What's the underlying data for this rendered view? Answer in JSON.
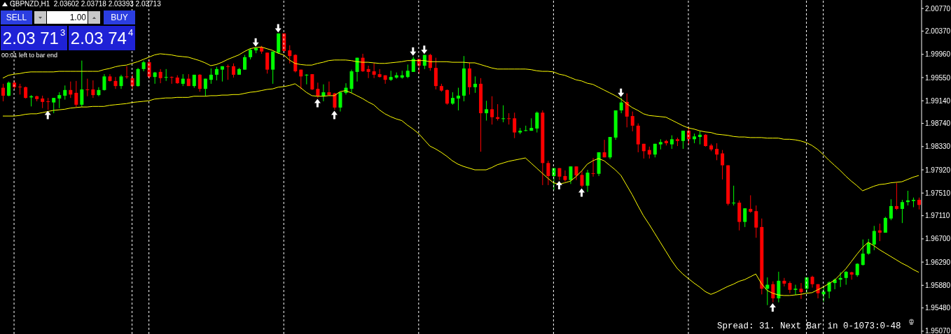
{
  "chart_data": {
    "type": "candlestick",
    "title": "GBPNZD,H1  2.03602 2.03718 2.03393 2.03713",
    "annotations": [
      "SELL",
      "1.00",
      "BUY",
      "2.03 71$^{3}$",
      "2.03 74$^{4}$",
      "00:01 left to bar end",
      "Spread: 31. Next Bar in 0-1073:0-48"
    ],
    "categories": [
      null,
      null,
      null,
      null,
      null,
      null,
      null,
      null,
      null,
      null,
      null,
      null,
      null,
      null,
      null,
      null,
      null,
      null,
      null,
      null,
      null,
      null,
      null,
      null,
      null,
      null,
      null,
      null,
      null,
      null,
      null,
      null,
      null,
      null,
      null,
      null,
      null,
      null,
      null,
      null,
      null,
      null,
      null,
      null,
      null,
      null,
      null,
      null,
      null,
      null,
      null,
      null,
      null,
      null,
      null,
      null,
      null,
      null,
      null,
      null,
      null,
      null,
      null,
      null,
      null,
      null,
      null,
      null,
      null,
      null,
      null,
      null,
      null,
      null,
      null,
      null,
      null,
      null,
      null,
      null,
      null,
      null,
      null,
      null,
      null,
      null,
      null,
      null,
      null,
      null,
      null,
      null,
      null,
      null,
      null,
      null,
      null,
      null,
      null,
      null,
      null,
      null,
      null,
      null,
      null,
      null,
      null,
      null,
      null,
      null,
      null,
      null,
      null,
      null,
      null,
      null,
      null,
      null,
      null,
      null,
      null,
      null,
      null,
      null,
      null,
      null,
      null,
      null,
      null,
      null,
      null,
      null,
      null,
      null,
      null,
      null,
      null,
      null,
      null,
      null,
      null,
      null,
      null,
      null,
      null,
      null,
      null,
      null,
      null,
      null,
      null,
      null,
      null,
      null,
      null,
      null,
      null,
      null,
      null,
      null,
      null,
      null,
      null,
      null
    ],
    "ohlc": [
      [
        1.9937,
        1.9944,
        1.9913,
        1.9923
      ],
      [
        1.9923,
        1.9948,
        1.9922,
        1.9946
      ],
      [
        1.9946,
        1.995,
        1.9934,
        1.9938
      ],
      [
        1.9939,
        1.9944,
        1.9925,
        1.9938
      ],
      [
        1.9938,
        1.9939,
        1.9918,
        1.9919
      ],
      [
        1.992,
        1.9924,
        1.9904,
        1.9922
      ],
      [
        1.9922,
        1.9923,
        1.9913,
        1.9917
      ],
      [
        1.9918,
        1.9923,
        1.9901,
        1.9912
      ],
      [
        1.9913,
        1.9919,
        1.9898,
        1.9912
      ],
      [
        1.9911,
        1.9919,
        1.9892,
        1.9919
      ],
      [
        1.9918,
        1.9929,
        1.9901,
        1.9924
      ],
      [
        1.9923,
        1.9941,
        1.9916,
        1.9933
      ],
      [
        1.9933,
        1.9948,
        1.9919,
        1.9925
      ],
      [
        1.9928,
        1.9949,
        1.9903,
        1.9907
      ],
      [
        1.9907,
        1.9985,
        1.9903,
        1.9934
      ],
      [
        1.9934,
        1.9953,
        1.9922,
        1.9933
      ],
      [
        1.9934,
        1.995,
        1.9919,
        1.9924
      ],
      [
        1.9924,
        1.9938,
        1.9922,
        1.9933
      ],
      [
        1.9933,
        1.9961,
        1.9932,
        1.9957
      ],
      [
        1.9957,
        1.9961,
        1.9948,
        1.9949
      ],
      [
        1.9949,
        1.9956,
        1.9935,
        1.994
      ],
      [
        1.994,
        1.996,
        1.9935,
        1.9957
      ],
      [
        1.9957,
        1.9975,
        1.9953,
        1.9956
      ],
      [
        1.9954,
        1.996,
        1.9934,
        1.994
      ],
      [
        1.994,
        1.9972,
        1.9939,
        1.997
      ],
      [
        1.997,
        1.9985,
        1.9966,
        1.9982
      ],
      [
        1.9982,
        1.9987,
        1.9953,
        1.9956
      ],
      [
        1.9956,
        1.9965,
        1.9944,
        1.9964
      ],
      [
        1.9965,
        1.997,
        1.9945,
        1.9954
      ],
      [
        1.9955,
        1.997,
        1.9949,
        1.9956
      ],
      [
        1.9956,
        1.9957,
        1.9944,
        1.9955
      ],
      [
        1.9955,
        1.9959,
        1.9944,
        1.9945
      ],
      [
        1.9944,
        1.9961,
        1.994,
        1.9953
      ],
      [
        1.9953,
        1.9961,
        1.994,
        1.994
      ],
      [
        1.994,
        1.996,
        1.9937,
        1.996
      ],
      [
        1.996,
        1.9961,
        1.993,
        1.9935
      ],
      [
        1.9935,
        1.9953,
        1.9922,
        1.9953
      ],
      [
        1.9951,
        1.9971,
        1.9944,
        1.996
      ],
      [
        1.996,
        1.9974,
        1.995,
        1.997
      ],
      [
        1.9969,
        1.9975,
        1.9948,
        1.9975
      ],
      [
        1.9975,
        1.9978,
        1.9951,
        1.9974
      ],
      [
        1.9975,
        1.998,
        1.9955,
        1.996
      ],
      [
        1.996,
        1.9972,
        1.996,
        1.997
      ],
      [
        1.9969,
        1.9995,
        1.9969,
        1.9991
      ],
      [
        1.9991,
        2.0006,
        1.9987,
        2.0004
      ],
      [
        2.0003,
        2.0008,
        1.9998,
        2.0007
      ],
      [
        2.0008,
        2.0011,
        1.9997,
        2.0001
      ],
      [
        1.9999,
        1.9999,
        1.9962,
        1.9969
      ],
      [
        1.9969,
        2.0001,
        1.9944,
        2.0001
      ],
      [
        1.9999,
        2.0033,
        1.9997,
        2.0033
      ],
      [
        2.0033,
        2.0033,
        1.9999,
        2.0002
      ],
      [
        2.0003,
        2.0012,
        1.998,
        1.9993
      ],
      [
        1.9995,
        1.9996,
        1.9964,
        1.9966
      ],
      [
        1.9969,
        1.9969,
        1.9934,
        1.9957
      ],
      [
        1.9959,
        1.9961,
        1.9943,
        1.996
      ],
      [
        1.9961,
        1.9961,
        1.9933,
        1.9934
      ],
      [
        1.9935,
        1.9946,
        1.9919,
        1.9923
      ],
      [
        1.9922,
        1.9943,
        1.9913,
        1.9929
      ],
      [
        1.9929,
        1.9948,
        1.9923,
        1.9924
      ],
      [
        1.9927,
        1.9928,
        1.9898,
        1.9902
      ],
      [
        1.9902,
        1.9929,
        1.9895,
        1.9929
      ],
      [
        1.9928,
        1.9945,
        1.9925,
        1.9937
      ],
      [
        1.9935,
        1.9969,
        1.9928,
        1.9966
      ],
      [
        1.9965,
        1.999,
        1.9948,
        1.999
      ],
      [
        1.999,
        1.9997,
        1.9965,
        1.9966
      ],
      [
        1.997,
        1.9976,
        1.9954,
        1.9965
      ],
      [
        1.9966,
        1.9981,
        1.9954,
        1.996
      ],
      [
        1.9961,
        1.997,
        1.9955,
        1.9956
      ],
      [
        1.9959,
        1.9959,
        1.9944,
        1.9951
      ],
      [
        1.9951,
        1.9967,
        1.9949,
        1.9956
      ],
      [
        1.9955,
        1.9964,
        1.9953,
        1.9959
      ],
      [
        1.9955,
        1.9967,
        1.9953,
        1.9959
      ],
      [
        1.9956,
        1.9978,
        1.9954,
        1.9967
      ],
      [
        1.9965,
        1.9992,
        1.9965,
        1.9988
      ],
      [
        1.9988,
        1.9988,
        1.9962,
        1.9976
      ],
      [
        1.9976,
        1.9995,
        1.997,
        1.9995
      ],
      [
        1.9995,
        1.9997,
        1.9967,
        1.9972
      ],
      [
        1.9972,
        1.999,
        1.9934,
        1.994
      ],
      [
        1.994,
        1.9944,
        1.993,
        1.9932
      ],
      [
        1.9933,
        1.9934,
        1.9907,
        1.9909
      ],
      [
        1.9909,
        1.9929,
        1.9907,
        1.9919
      ],
      [
        1.9918,
        1.9937,
        1.9897,
        1.9923
      ],
      [
        1.9923,
        1.9993,
        1.9913,
        1.9971
      ],
      [
        1.9971,
        1.9981,
        1.9925,
        1.9938
      ],
      [
        1.9938,
        1.9957,
        1.9928,
        1.9944
      ],
      [
        1.9944,
        1.9954,
        1.9824,
        1.9892
      ],
      [
        1.9892,
        1.9914,
        1.9879,
        1.9899
      ],
      [
        1.9899,
        1.9922,
        1.9872,
        1.9885
      ],
      [
        1.9885,
        1.9908,
        1.9879,
        1.9882
      ],
      [
        1.9882,
        1.9906,
        1.9876,
        1.9883
      ],
      [
        1.9883,
        1.9892,
        1.9872,
        1.9882
      ],
      [
        1.9883,
        1.9893,
        1.9848,
        1.9858
      ],
      [
        1.9858,
        1.9866,
        1.9855,
        1.9861
      ],
      [
        1.9861,
        1.987,
        1.986,
        1.9862
      ],
      [
        1.9861,
        1.9883,
        1.9861,
        1.9866
      ],
      [
        1.9865,
        1.9895,
        1.9858,
        1.9893
      ],
      [
        1.9893,
        1.9897,
        1.9765,
        1.9804
      ],
      [
        1.9804,
        1.9808,
        1.9765,
        1.9781
      ],
      [
        1.9781,
        1.9795,
        1.9756,
        1.9795
      ],
      [
        1.9795,
        1.9795,
        1.9774,
        1.978
      ],
      [
        1.9781,
        1.9791,
        1.9771,
        1.9774
      ],
      [
        1.9774,
        1.9798,
        1.9767,
        1.9798
      ],
      [
        1.9798,
        1.9798,
        1.9774,
        1.9782
      ],
      [
        1.9783,
        1.979,
        1.9761,
        1.9764
      ],
      [
        1.9764,
        1.9792,
        1.9753,
        1.9787
      ],
      [
        1.9786,
        1.9813,
        1.978,
        1.9785
      ],
      [
        1.9785,
        1.9823,
        1.9781,
        1.9823
      ],
      [
        1.9823,
        1.9845,
        1.9814,
        1.9814
      ],
      [
        1.9814,
        1.985,
        1.9811,
        1.985
      ],
      [
        1.9849,
        1.9897,
        1.9845,
        1.9897
      ],
      [
        1.9897,
        1.9919,
        1.9892,
        1.9911
      ],
      [
        1.9912,
        1.9927,
        1.9867,
        1.9886
      ],
      [
        1.9887,
        1.9895,
        1.986,
        1.987
      ],
      [
        1.987,
        1.9874,
        1.9823,
        1.9837
      ],
      [
        1.9838,
        1.9838,
        1.9812,
        1.9825
      ],
      [
        1.9827,
        1.9833,
        1.9812,
        1.9819
      ],
      [
        1.9819,
        1.9838,
        1.9814,
        1.9838
      ],
      [
        1.9837,
        1.9846,
        1.9828,
        1.9841
      ],
      [
        1.9843,
        1.9845,
        1.9835,
        1.9839
      ],
      [
        1.9837,
        1.9853,
        1.9829,
        1.9846
      ],
      [
        1.9846,
        1.9849,
        1.9834,
        1.9843
      ],
      [
        1.9843,
        1.9861,
        1.9829,
        1.9861
      ],
      [
        1.9861,
        1.9867,
        1.9837,
        1.9846
      ],
      [
        1.9846,
        1.9856,
        1.9839,
        1.9851
      ],
      [
        1.985,
        1.986,
        1.9837,
        1.9854
      ],
      [
        1.9854,
        1.9855,
        1.9833,
        1.9834
      ],
      [
        1.9835,
        1.9838,
        1.9825,
        1.9828
      ],
      [
        1.9829,
        1.9839,
        1.9809,
        1.9819
      ],
      [
        1.9821,
        1.9827,
        1.9775,
        1.98
      ],
      [
        1.98,
        1.98,
        1.9729,
        1.9732
      ],
      [
        1.9733,
        1.9764,
        1.9729,
        1.9734
      ],
      [
        1.9734,
        1.9738,
        1.9685,
        1.97
      ],
      [
        1.97,
        1.9724,
        1.9691,
        1.9724
      ],
      [
        1.9723,
        1.9747,
        1.9716,
        1.9718
      ],
      [
        1.9719,
        1.9729,
        1.9672,
        1.969
      ],
      [
        1.9691,
        1.9706,
        1.9572,
        1.9582
      ],
      [
        1.9582,
        1.9602,
        1.9553,
        1.9589
      ],
      [
        1.959,
        1.9595,
        1.9558,
        1.9565
      ],
      [
        1.9565,
        1.9612,
        1.9558,
        1.9596
      ],
      [
        1.9596,
        1.9601,
        1.9586,
        1.9591
      ],
      [
        1.9592,
        1.9595,
        1.9574,
        1.958
      ],
      [
        1.958,
        1.9589,
        1.9571,
        1.9582
      ],
      [
        1.9582,
        1.9592,
        1.9564,
        1.9576
      ],
      [
        1.9582,
        1.9602,
        1.9574,
        1.9602
      ],
      [
        1.9603,
        1.9605,
        1.9584,
        1.959
      ],
      [
        1.959,
        1.959,
        1.9565,
        1.9574
      ],
      [
        1.9572,
        1.9585,
        1.9559,
        1.9577
      ],
      [
        1.9577,
        1.9595,
        1.9565,
        1.9593
      ],
      [
        1.9592,
        1.96,
        1.9581,
        1.9598
      ],
      [
        1.9598,
        1.9611,
        1.9585,
        1.9601
      ],
      [
        1.9601,
        1.9613,
        1.9589,
        1.9612
      ],
      [
        1.9611,
        1.9612,
        1.9598,
        1.9607
      ],
      [
        1.9606,
        1.9627,
        1.9603,
        1.9626
      ],
      [
        1.9624,
        1.9669,
        1.9623,
        1.9644
      ],
      [
        1.9644,
        1.967,
        1.9642,
        1.9663
      ],
      [
        1.966,
        1.9693,
        1.965,
        1.9684
      ],
      [
        1.9685,
        1.9697,
        1.9666,
        1.9681
      ],
      [
        1.9681,
        1.9709,
        1.9681,
        1.9707
      ],
      [
        1.9706,
        1.974,
        1.9703,
        1.9728
      ],
      [
        1.9728,
        1.9769,
        1.9721,
        1.9723
      ],
      [
        1.9723,
        1.9739,
        1.9698,
        1.9735
      ],
      [
        1.9735,
        1.9755,
        1.9729,
        1.9738
      ],
      [
        1.9737,
        1.9743,
        1.9726,
        1.9739
      ],
      [
        1.9739,
        1.9743,
        1.9722,
        1.973
      ]
    ],
    "colors": [
      "#ff0000",
      "#00ff00",
      "#ff0000",
      "#ff0000",
      "#ff0000",
      "#00ff00",
      "#ff0000",
      "#ff0000",
      "#ff0000",
      "#00ff00",
      "#00ff00",
      "#00ff00",
      "#ff0000",
      "#ff0000",
      "#00ff00",
      "#ff0000",
      "#ff0000",
      "#00ff00",
      "#00ff00",
      "#ff0000",
      "#ff0000",
      "#00ff00",
      "#ff0000",
      "#ff0000",
      "#00ff00",
      "#00ff00",
      "#ff0000",
      "#00ff00",
      "#ff0000",
      "#00ff00",
      "#ff0000",
      "#ff0000",
      "#00ff00",
      "#ff0000",
      "#00ff00",
      "#ff0000",
      "#00ff00",
      "#00ff00",
      "#00ff00",
      "#00ff00",
      "#ff0000",
      "#ff0000",
      "#00ff00",
      "#00ff00",
      "#00ff00",
      "#00ff00",
      "#ff0000",
      "#ff0000",
      "#00ff00",
      "#00ff00",
      "#ff0000",
      "#ff0000",
      "#ff0000",
      "#ff0000",
      "#00ff00",
      "#ff0000",
      "#ff0000",
      "#00ff00",
      "#ff0000",
      "#ff0000",
      "#00ff00",
      "#00ff00",
      "#00ff00",
      "#00ff00",
      "#ff0000",
      "#ff0000",
      "#ff0000",
      "#ff0000",
      "#ff0000",
      "#00ff00",
      "#00ff00",
      "#00ff00",
      "#00ff00",
      "#00ff00",
      "#ff0000",
      "#00ff00",
      "#ff0000",
      "#ff0000",
      "#ff0000",
      "#ff0000",
      "#00ff00",
      "#00ff00",
      "#00ff00",
      "#ff0000",
      "#00ff00",
      "#ff0000",
      "#00ff00",
      "#ff0000",
      "#ff0000",
      "#00ff00",
      "#ff0000",
      "#ff0000",
      "#00ff00",
      "#00ff00",
      "#00ff00",
      "#00ff00",
      "#ff0000",
      "#ff0000",
      "#00ff00",
      "#ff0000",
      "#ff0000",
      "#00ff00",
      "#ff0000",
      "#ff0000",
      "#00ff00",
      "#ff0000",
      "#00ff00",
      "#ff0000",
      "#00ff00",
      "#00ff00",
      "#00ff00",
      "#ff0000",
      "#ff0000",
      "#ff0000",
      "#ff0000",
      "#ff0000",
      "#00ff00",
      "#00ff00",
      "#ff0000",
      "#00ff00",
      "#ff0000",
      "#00ff00",
      "#ff0000",
      "#00ff00",
      "#00ff00",
      "#ff0000",
      "#ff0000",
      "#ff0000",
      "#ff0000",
      "#ff0000",
      "#00ff00",
      "#ff0000",
      "#00ff00",
      "#ff0000",
      "#ff0000",
      "#ff0000",
      "#00ff00",
      "#ff0000",
      "#00ff00",
      "#ff0000",
      "#ff0000",
      "#00ff00",
      "#ff0000",
      "#00ff00",
      "#ff0000",
      "#ff0000",
      "#00ff00",
      "#00ff00",
      "#00ff00",
      "#00ff00",
      "#00ff00",
      "#ff0000",
      "#00ff00",
      "#00ff00",
      "#00ff00",
      "#00ff00",
      "#ff0000",
      "#00ff00",
      "#00ff00",
      "#ff0000",
      "#00ff00",
      "#00ff00",
      "#00ff00",
      "#ff0000"
    ],
    "series": [
      {
        "type": "line",
        "color": "#ffff00",
        "values": [
          1.9954,
          1.9959,
          1.9961,
          1.9962,
          1.9964,
          1.9965,
          1.9965,
          1.9965,
          1.9965,
          1.9965,
          1.9966,
          1.9966,
          1.9966,
          1.9966,
          1.9966,
          1.9966,
          1.9966,
          1.9966,
          1.9969,
          1.9971,
          1.9974,
          1.9976,
          1.9977,
          1.998,
          1.9983,
          1.9987,
          1.9991,
          1.9995,
          1.9997,
          1.9996,
          1.9995,
          1.9993,
          1.9992,
          1.9991,
          1.9988,
          1.9985,
          1.9981,
          1.9976,
          1.9978,
          1.9982,
          1.9987,
          1.9991,
          1.9995,
          2.0001,
          2.0006,
          2.0008,
          2.0009,
          2.0006,
          2.0003,
          1.9998,
          1.9995,
          1.9986,
          1.998,
          1.9978,
          1.9977,
          1.9977,
          1.998,
          1.9982,
          1.9985,
          1.9986,
          1.9986,
          1.9986,
          1.9985,
          1.9983,
          1.9982,
          1.9982,
          1.9981,
          1.998,
          1.998,
          1.9981,
          1.9982,
          1.9983,
          1.9985,
          1.9985,
          1.9985,
          1.9985,
          1.9983,
          1.9983,
          1.9983,
          1.9983,
          1.9982,
          1.9982,
          1.9982,
          1.9981,
          1.9981,
          1.9978,
          1.9975,
          1.9972,
          1.997,
          1.997,
          1.997,
          1.997,
          1.997,
          1.997,
          1.9969,
          1.9967,
          1.9966,
          1.9966,
          1.9965,
          1.9961,
          1.9959,
          1.9955,
          1.9951,
          1.9949,
          1.9945,
          1.9943,
          1.9938,
          1.9933,
          1.9928,
          1.9923,
          1.9917,
          1.9909,
          1.9902,
          1.9897,
          1.9891,
          1.9888,
          1.9887,
          1.9886,
          1.9885,
          1.988,
          1.9875,
          1.987,
          1.9866,
          1.9864,
          1.9861,
          1.9859,
          1.9858,
          1.9855,
          1.9854,
          1.9853,
          1.9851,
          1.985,
          1.985,
          1.9849,
          1.9849,
          1.9849,
          1.9848,
          1.9848,
          1.9848,
          1.9846,
          1.9846,
          1.9845,
          1.9843,
          1.984,
          1.9835,
          1.9828,
          1.9819,
          1.9809,
          1.98,
          1.9791,
          1.9781,
          1.9772,
          1.9764,
          1.9755,
          1.9759,
          1.9763,
          1.9766,
          1.9767,
          1.9769,
          1.977,
          1.9771,
          1.9775,
          1.9779,
          1.9782
        ]
      },
      {
        "type": "line",
        "color": "#ffff00",
        "values": [
          1.9887,
          1.9887,
          1.9887,
          1.9888,
          1.989,
          1.9891,
          1.9891,
          1.9893,
          1.9895,
          1.9897,
          1.9898,
          1.9899,
          1.9901,
          1.9902,
          1.9903,
          1.9903,
          1.9904,
          1.9904,
          1.9904,
          1.9906,
          1.9907,
          1.9908,
          1.9909,
          1.9911,
          1.9912,
          1.9913,
          1.9914,
          1.9917,
          1.9918,
          1.9919,
          1.9919,
          1.992,
          1.992,
          1.992,
          1.9922,
          1.9922,
          1.9922,
          1.9923,
          1.9923,
          1.9924,
          1.9924,
          1.9925,
          1.9925,
          1.9927,
          1.9929,
          1.993,
          1.9932,
          1.9934,
          1.9935,
          1.9938,
          1.9939,
          1.9941,
          1.9944,
          1.9937,
          1.9929,
          1.9923,
          1.9922,
          1.9922,
          1.9923,
          1.9923,
          1.993,
          1.9932,
          1.9928,
          1.9923,
          1.9918,
          1.9912,
          1.9907,
          1.9898,
          1.9891,
          1.9886,
          1.9882,
          1.9879,
          1.9871,
          1.9864,
          1.9856,
          1.9845,
          1.9834,
          1.9829,
          1.9823,
          1.9816,
          1.9808,
          1.9802,
          1.9798,
          1.9795,
          1.9792,
          1.9792,
          1.9792,
          1.9796,
          1.9801,
          1.9804,
          1.9807,
          1.9809,
          1.9811,
          1.9813,
          1.9804,
          1.9795,
          1.9786,
          1.9777,
          1.9769,
          1.9767,
          1.9769,
          1.9772,
          1.978,
          1.979,
          1.9802,
          1.9808,
          1.9812,
          1.9808,
          1.98,
          1.9792,
          1.9782,
          1.9765,
          1.9748,
          1.9729,
          1.9711,
          1.9696,
          1.968,
          1.9664,
          1.9648,
          1.9632,
          1.9618,
          1.9608,
          1.96,
          1.9592,
          1.9585,
          1.9577,
          1.9572,
          1.9576,
          1.9581,
          1.9586,
          1.959,
          1.9595,
          1.9598,
          1.9603,
          1.9608,
          1.9591,
          1.9579,
          1.9574,
          1.9571,
          1.957,
          1.957,
          1.9571,
          1.9572,
          1.9574,
          1.9575,
          1.958,
          1.9585,
          1.9591,
          1.9597,
          1.9607,
          1.9617,
          1.963,
          1.9643,
          1.9655,
          1.9664,
          1.9658,
          1.9651,
          1.9645,
          1.9639,
          1.9633,
          1.9627,
          1.9622,
          1.9616,
          1.9611
        ]
      },
      {
        "type": "scatter",
        "color": "#ffffff",
        "marker": "triangle",
        "values": [
          null,
          null,
          null,
          null,
          null,
          null,
          null,
          null,
          null,
          null,
          null,
          null,
          null,
          null,
          null,
          null,
          null,
          null,
          null,
          null,
          null,
          null,
          null,
          null,
          null,
          null,
          null,
          null,
          null,
          null,
          null,
          null,
          null,
          null,
          null,
          null,
          null,
          null,
          null,
          null,
          null,
          null,
          null,
          null,
          null,
          2.0017,
          null,
          null,
          null,
          2.0042,
          null,
          null,
          null,
          null,
          null,
          null,
          null,
          null,
          null,
          null,
          null,
          null,
          null,
          null,
          null,
          null,
          null,
          null,
          null,
          null,
          null,
          null,
          null,
          2.0001,
          null,
          2.0004,
          null,
          null,
          null,
          null,
          null,
          null,
          null,
          null,
          null,
          null,
          null,
          null,
          null,
          null,
          null,
          null,
          null,
          null,
          null,
          null,
          null,
          null,
          null,
          null,
          null,
          null,
          null,
          null,
          null,
          null,
          null,
          null,
          null,
          null,
          1.9928,
          null,
          null,
          null,
          null,
          null,
          null,
          null,
          null,
          null,
          null,
          null,
          null,
          null,
          null,
          null,
          null,
          null,
          null,
          null,
          null,
          null,
          null,
          null,
          null,
          null,
          null,
          null,
          null,
          null,
          null,
          null,
          null,
          null,
          null,
          null,
          null,
          null,
          null,
          null,
          null,
          null,
          null,
          null,
          null,
          null,
          null,
          null,
          null,
          null,
          null,
          null,
          null,
          null
        ]
      },
      {
        "type": "scatter",
        "color": "#ffffff",
        "marker": "triangle",
        "values": [
          null,
          null,
          null,
          null,
          null,
          null,
          null,
          null,
          1.9889,
          null,
          null,
          null,
          null,
          null,
          null,
          null,
          null,
          null,
          null,
          null,
          null,
          null,
          null,
          null,
          null,
          null,
          null,
          null,
          null,
          null,
          null,
          null,
          null,
          null,
          null,
          null,
          null,
          null,
          null,
          null,
          null,
          null,
          null,
          null,
          null,
          null,
          null,
          null,
          null,
          null,
          null,
          null,
          null,
          null,
          null,
          null,
          1.991,
          null,
          null,
          1.9889,
          null,
          null,
          null,
          null,
          null,
          null,
          null,
          null,
          null,
          null,
          null,
          null,
          null,
          null,
          null,
          null,
          null,
          null,
          null,
          null,
          null,
          null,
          null,
          null,
          null,
          null,
          null,
          null,
          null,
          null,
          null,
          null,
          null,
          null,
          null,
          null,
          null,
          null,
          null,
          1.9765,
          null,
          null,
          null,
          1.9752,
          null,
          null,
          null,
          null,
          null,
          null,
          null,
          null,
          null,
          null,
          null,
          null,
          null,
          null,
          null,
          null,
          null,
          null,
          null,
          null,
          null,
          null,
          null,
          null,
          null,
          null,
          null,
          null,
          null,
          null,
          null,
          null,
          null,
          1.9549,
          null,
          null,
          null,
          null,
          null,
          null,
          null,
          null,
          null,
          null,
          null,
          null,
          null,
          null,
          null,
          null,
          null,
          null,
          null,
          null,
          null,
          null,
          null,
          null,
          null,
          null
        ]
      }
    ],
    "ylim": [
      1.9502,
      2.0092
    ],
    "yticks": [
      {
        "value": 2.0077,
        "label": "2.00770"
      },
      {
        "value": 2.0037,
        "label": "2.00370"
      },
      {
        "value": 1.9996,
        "label": "1.99960"
      },
      {
        "value": 1.9955,
        "label": "1.99550"
      },
      {
        "value": 1.9914,
        "label": "1.99140"
      },
      {
        "value": 1.9874,
        "label": "1.98740"
      },
      {
        "value": 1.9833,
        "label": "1.98330"
      },
      {
        "value": 1.9792,
        "label": "1.97920"
      },
      {
        "value": 1.9751,
        "label": "1.97510"
      },
      {
        "value": 1.9711,
        "label": "1.97110"
      },
      {
        "value": 1.967,
        "label": "1.96700"
      },
      {
        "value": 1.9629,
        "label": "1.96290"
      },
      {
        "value": 1.9588,
        "label": "1.95880"
      },
      {
        "value": 1.9548,
        "label": "1.95480"
      },
      {
        "value": 1.9507,
        "label": "1.95070"
      }
    ],
    "tick_labels": "y",
    "grid": false,
    "legend": false,
    "line_style": "solid"
  }
}
